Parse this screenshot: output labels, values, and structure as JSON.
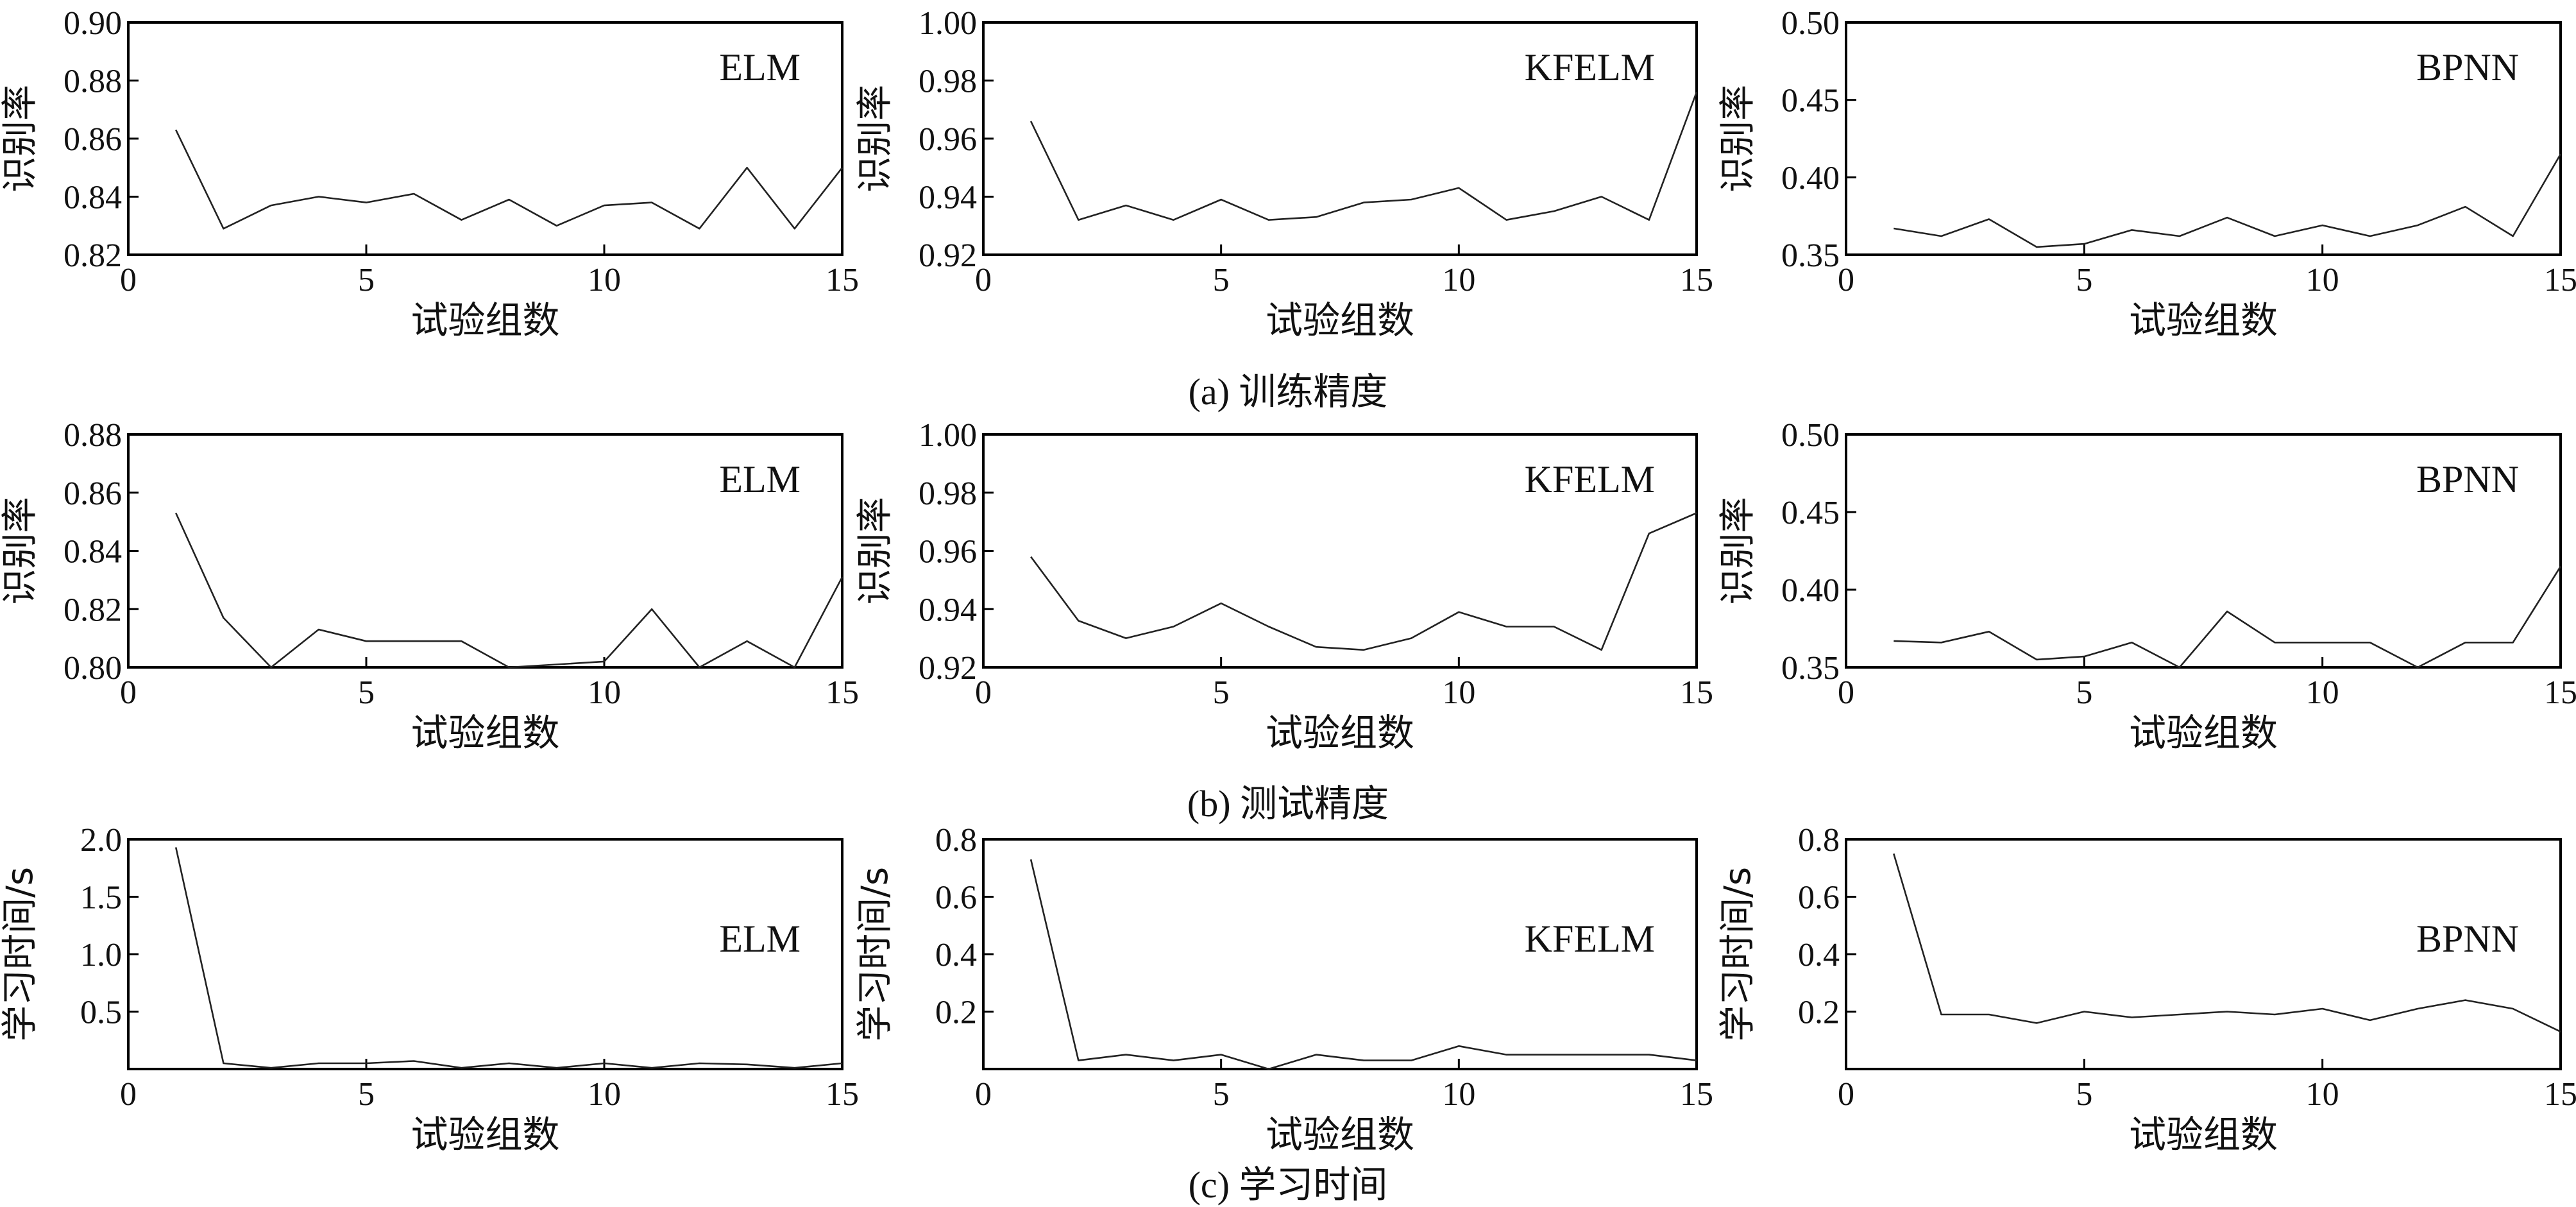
{
  "captions": [
    "(a) 训练精度",
    "(b) 测试精度",
    "(c) 学习时间"
  ],
  "chart_data": [
    {
      "type": "line",
      "legend": "ELM",
      "xlabel": "试验组数",
      "ylabel": "识别率",
      "xlim": [
        0,
        15
      ],
      "ylim": [
        0.82,
        0.9
      ],
      "xticks": [
        0,
        5,
        10,
        15
      ],
      "yticks": [
        "0.82",
        "0.84",
        "0.86",
        "0.88",
        "0.90"
      ],
      "x": [
        1,
        2,
        3,
        4,
        5,
        6,
        7,
        8,
        9,
        10,
        11,
        12,
        13,
        14,
        15
      ],
      "values": [
        0.863,
        0.829,
        0.837,
        0.84,
        0.838,
        0.841,
        0.832,
        0.839,
        0.83,
        0.837,
        0.838,
        0.829,
        0.85,
        0.829,
        0.85
      ]
    },
    {
      "type": "line",
      "legend": "KFELM",
      "xlabel": "试验组数",
      "ylabel": "识别率",
      "xlim": [
        0,
        15
      ],
      "ylim": [
        0.92,
        1.0
      ],
      "xticks": [
        0,
        5,
        10,
        15
      ],
      "yticks": [
        "0.92",
        "0.94",
        "0.96",
        "0.98",
        "1.00"
      ],
      "x": [
        1,
        2,
        3,
        4,
        5,
        6,
        7,
        8,
        9,
        10,
        11,
        12,
        13,
        14,
        15
      ],
      "values": [
        0.966,
        0.932,
        0.937,
        0.932,
        0.939,
        0.932,
        0.933,
        0.938,
        0.939,
        0.943,
        0.932,
        0.935,
        0.94,
        0.932,
        0.976
      ]
    },
    {
      "type": "line",
      "legend": "BPNN",
      "xlabel": "试验组数",
      "ylabel": "识别率",
      "xlim": [
        0,
        15
      ],
      "ylim": [
        0.35,
        0.5
      ],
      "xticks": [
        0,
        5,
        10,
        15
      ],
      "yticks": [
        "0.35",
        "0.40",
        "0.45",
        "0.50"
      ],
      "x": [
        1,
        2,
        3,
        4,
        5,
        6,
        7,
        8,
        9,
        10,
        11,
        12,
        13,
        14,
        15
      ],
      "values": [
        0.367,
        0.362,
        0.373,
        0.355,
        0.357,
        0.366,
        0.362,
        0.374,
        0.362,
        0.369,
        0.362,
        0.369,
        0.381,
        0.362,
        0.415
      ]
    },
    {
      "type": "line",
      "legend": "ELM",
      "xlabel": "试验组数",
      "ylabel": "识别率",
      "xlim": [
        0,
        15
      ],
      "ylim": [
        0.8,
        0.88
      ],
      "xticks": [
        0,
        5,
        10,
        15
      ],
      "yticks": [
        "0.80",
        "0.82",
        "0.84",
        "0.86",
        "0.88"
      ],
      "x": [
        1,
        2,
        3,
        4,
        5,
        6,
        7,
        8,
        9,
        10,
        11,
        12,
        13,
        14,
        15
      ],
      "values": [
        0.853,
        0.817,
        0.8,
        0.813,
        0.809,
        0.809,
        0.809,
        0.8,
        0.801,
        0.802,
        0.82,
        0.8,
        0.809,
        0.8,
        0.831
      ]
    },
    {
      "type": "line",
      "legend": "KFELM",
      "xlabel": "试验组数",
      "ylabel": "识别率",
      "xlim": [
        0,
        15
      ],
      "ylim": [
        0.92,
        1.0
      ],
      "xticks": [
        0,
        5,
        10,
        15
      ],
      "yticks": [
        "0.92",
        "0.94",
        "0.96",
        "0.98",
        "1.00"
      ],
      "x": [
        1,
        2,
        3,
        4,
        5,
        6,
        7,
        8,
        9,
        10,
        11,
        12,
        13,
        14,
        15
      ],
      "values": [
        0.958,
        0.936,
        0.93,
        0.934,
        0.942,
        0.934,
        0.927,
        0.926,
        0.93,
        0.939,
        0.934,
        0.934,
        0.926,
        0.966,
        0.973
      ]
    },
    {
      "type": "line",
      "legend": "BPNN",
      "xlabel": "试验组数",
      "ylabel": "识别率",
      "xlim": [
        0,
        15
      ],
      "ylim": [
        0.35,
        0.5
      ],
      "xticks": [
        0,
        5,
        10,
        15
      ],
      "yticks": [
        "0.35",
        "0.40",
        "0.45",
        "0.50"
      ],
      "x": [
        1,
        2,
        3,
        4,
        5,
        6,
        7,
        8,
        9,
        10,
        11,
        12,
        13,
        14,
        15
      ],
      "values": [
        0.367,
        0.366,
        0.373,
        0.355,
        0.357,
        0.366,
        0.35,
        0.386,
        0.366,
        0.366,
        0.366,
        0.35,
        0.366,
        0.366,
        0.415
      ]
    },
    {
      "type": "line",
      "legend": "ELM",
      "xlabel": "试验组数",
      "ylabel": "学习时间/s",
      "xlim": [
        0,
        15
      ],
      "ylim": [
        0,
        2.0
      ],
      "xticks": [
        0,
        5,
        10,
        15
      ],
      "yticks": [
        "",
        "0.5",
        "1.0",
        "1.5",
        "2.0"
      ],
      "x": [
        1,
        2,
        3,
        4,
        5,
        6,
        7,
        8,
        9,
        10,
        11,
        12,
        13,
        14,
        15
      ],
      "values": [
        1.93,
        0.05,
        0.01,
        0.05,
        0.05,
        0.07,
        0.01,
        0.05,
        0.01,
        0.05,
        0.01,
        0.05,
        0.04,
        0.01,
        0.05
      ]
    },
    {
      "type": "line",
      "legend": "KFELM",
      "xlabel": "试验组数",
      "ylabel": "学习时间/s",
      "xlim": [
        0,
        15
      ],
      "ylim": [
        0,
        0.8
      ],
      "xticks": [
        0,
        5,
        10,
        15
      ],
      "yticks": [
        "",
        "0.2",
        "0.4",
        "0.6",
        "0.8"
      ],
      "x": [
        1,
        2,
        3,
        4,
        5,
        6,
        7,
        8,
        9,
        10,
        11,
        12,
        13,
        14,
        15
      ],
      "values": [
        0.73,
        0.03,
        0.05,
        0.03,
        0.05,
        0.0,
        0.05,
        0.03,
        0.03,
        0.08,
        0.05,
        0.05,
        0.05,
        0.05,
        0.03
      ]
    },
    {
      "type": "line",
      "legend": "BPNN",
      "xlabel": "试验组数",
      "ylabel": "学习时间/s",
      "xlim": [
        0,
        15
      ],
      "ylim": [
        0,
        0.8
      ],
      "xticks": [
        0,
        5,
        10,
        15
      ],
      "yticks": [
        "",
        "0.2",
        "0.4",
        "0.6",
        "0.8"
      ],
      "x": [
        1,
        2,
        3,
        4,
        5,
        6,
        7,
        8,
        9,
        10,
        11,
        12,
        13,
        14,
        15
      ],
      "values": [
        0.75,
        0.19,
        0.19,
        0.16,
        0.2,
        0.18,
        0.19,
        0.2,
        0.19,
        0.21,
        0.17,
        0.21,
        0.24,
        0.21,
        0.13
      ]
    }
  ]
}
